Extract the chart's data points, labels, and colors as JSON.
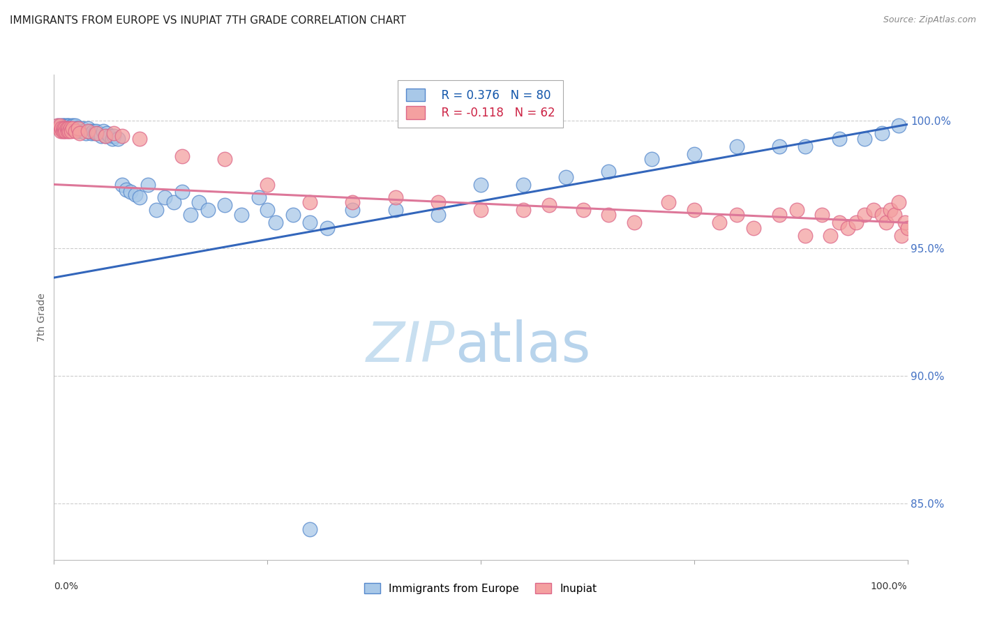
{
  "title": "IMMIGRANTS FROM EUROPE VS INUPIAT 7TH GRADE CORRELATION CHART",
  "source": "Source: ZipAtlas.com",
  "ylabel": "7th Grade",
  "ytick_labels": [
    "85.0%",
    "90.0%",
    "95.0%",
    "100.0%"
  ],
  "ytick_values": [
    0.85,
    0.9,
    0.95,
    1.0
  ],
  "xlim": [
    0.0,
    1.0
  ],
  "ylim": [
    0.828,
    1.018
  ],
  "legend_blue_r": "R = 0.376",
  "legend_blue_n": "N = 80",
  "legend_pink_r": "R = -0.118",
  "legend_pink_n": "N = 62",
  "legend_label_blue": "Immigrants from Europe",
  "legend_label_pink": "Inupiat",
  "blue_color": "#a8c8e8",
  "pink_color": "#f4a0a0",
  "blue_edge_color": "#5588cc",
  "pink_edge_color": "#dd6688",
  "blue_line_color": "#3366bb",
  "pink_line_color": "#dd7799",
  "watermark_zip_color": "#c8dff0",
  "watermark_atlas_color": "#c0d8ee",
  "grid_color": "#cccccc",
  "background_color": "#ffffff",
  "right_label_color": "#4472c4",
  "blue_trendline": [
    0.0,
    1.0,
    0.9385,
    0.9985
  ],
  "pink_trendline": [
    0.0,
    1.0,
    0.975,
    0.96
  ],
  "blue_x": [
    0.005,
    0.008,
    0.009,
    0.01,
    0.01,
    0.011,
    0.012,
    0.013,
    0.014,
    0.015,
    0.016,
    0.017,
    0.018,
    0.019,
    0.02,
    0.021,
    0.022,
    0.023,
    0.025,
    0.026,
    0.027,
    0.028,
    0.03,
    0.031,
    0.033,
    0.035,
    0.037,
    0.04,
    0.042,
    0.044,
    0.046,
    0.048,
    0.05,
    0.052,
    0.055,
    0.058,
    0.06,
    0.062,
    0.065,
    0.068,
    0.07,
    0.075,
    0.08,
    0.085,
    0.09,
    0.095,
    0.1,
    0.11,
    0.12,
    0.13,
    0.14,
    0.15,
    0.16,
    0.17,
    0.18,
    0.2,
    0.22,
    0.24,
    0.25,
    0.26,
    0.28,
    0.3,
    0.32,
    0.35,
    0.4,
    0.45,
    0.5,
    0.55,
    0.6,
    0.65,
    0.7,
    0.75,
    0.8,
    0.85,
    0.88,
    0.92,
    0.95,
    0.97,
    0.99,
    0.3
  ],
  "blue_y": [
    0.998,
    0.998,
    0.997,
    0.998,
    0.997,
    0.998,
    0.997,
    0.998,
    0.997,
    0.998,
    0.998,
    0.997,
    0.998,
    0.997,
    0.997,
    0.998,
    0.997,
    0.998,
    0.998,
    0.997,
    0.997,
    0.996,
    0.997,
    0.996,
    0.997,
    0.996,
    0.995,
    0.997,
    0.996,
    0.995,
    0.996,
    0.995,
    0.996,
    0.995,
    0.994,
    0.996,
    0.994,
    0.995,
    0.994,
    0.993,
    0.994,
    0.993,
    0.975,
    0.973,
    0.972,
    0.971,
    0.97,
    0.975,
    0.965,
    0.97,
    0.968,
    0.972,
    0.963,
    0.968,
    0.965,
    0.967,
    0.963,
    0.97,
    0.965,
    0.96,
    0.963,
    0.96,
    0.958,
    0.965,
    0.965,
    0.963,
    0.975,
    0.975,
    0.978,
    0.98,
    0.985,
    0.987,
    0.99,
    0.99,
    0.99,
    0.993,
    0.993,
    0.995,
    0.998,
    0.84
  ],
  "pink_x": [
    0.004,
    0.006,
    0.007,
    0.008,
    0.009,
    0.01,
    0.011,
    0.012,
    0.013,
    0.014,
    0.015,
    0.016,
    0.017,
    0.018,
    0.019,
    0.02,
    0.022,
    0.025,
    0.028,
    0.03,
    0.04,
    0.05,
    0.06,
    0.07,
    0.08,
    0.1,
    0.15,
    0.2,
    0.25,
    0.3,
    0.35,
    0.4,
    0.45,
    0.5,
    0.55,
    0.58,
    0.62,
    0.65,
    0.68,
    0.72,
    0.75,
    0.78,
    0.8,
    0.82,
    0.85,
    0.87,
    0.88,
    0.9,
    0.91,
    0.92,
    0.93,
    0.94,
    0.95,
    0.96,
    0.97,
    0.975,
    0.98,
    0.985,
    0.99,
    0.993,
    0.997,
    1.0
  ],
  "pink_y": [
    0.998,
    0.997,
    0.998,
    0.996,
    0.997,
    0.996,
    0.997,
    0.996,
    0.997,
    0.996,
    0.997,
    0.996,
    0.997,
    0.996,
    0.997,
    0.996,
    0.997,
    0.996,
    0.997,
    0.995,
    0.996,
    0.995,
    0.994,
    0.995,
    0.994,
    0.993,
    0.986,
    0.985,
    0.975,
    0.968,
    0.968,
    0.97,
    0.968,
    0.965,
    0.965,
    0.967,
    0.965,
    0.963,
    0.96,
    0.968,
    0.965,
    0.96,
    0.963,
    0.958,
    0.963,
    0.965,
    0.955,
    0.963,
    0.955,
    0.96,
    0.958,
    0.96,
    0.963,
    0.965,
    0.963,
    0.96,
    0.965,
    0.963,
    0.968,
    0.955,
    0.96,
    0.958
  ]
}
